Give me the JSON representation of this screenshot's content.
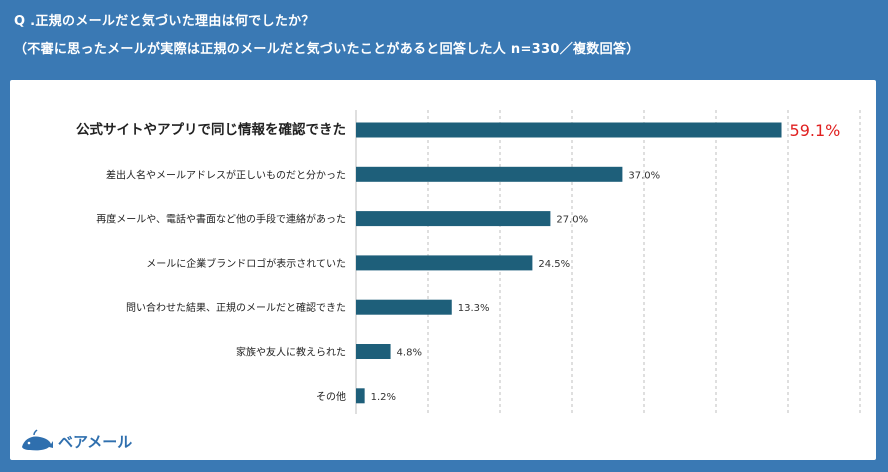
{
  "header": {
    "question": "Q .正規のメールだと気づいた理由は何でしたか？",
    "subtitle": "（不審に思ったメールが実際は正規のメールだと気づいたことがあると回答した人 n=330／複数回答）"
  },
  "logo": {
    "text": "ベアメール",
    "icon": "whale-icon"
  },
  "colors": {
    "background": "#3a79b4",
    "bar": "#1e5f7a",
    "highlight": "#e02020",
    "grid": "#bfbfbf"
  },
  "chart_data": {
    "type": "bar",
    "orientation": "horizontal",
    "categories": [
      "公式サイトやアプリで同じ情報を確認できた",
      "差出人名やメールアドレスが正しいものだと分かった",
      "再度メールや、電話や書面など他の手段で連絡があった",
      "メールに企業ブランドロゴが表示されていた",
      "問い合わせた結果、正規のメールだと確認できた",
      "家族や友人に教えられた",
      "その他"
    ],
    "values": [
      59.1,
      37.0,
      27.0,
      24.5,
      13.3,
      4.8,
      1.2
    ],
    "value_labels": [
      "59.1%",
      "37.0%",
      "27.0%",
      "24.5%",
      "13.3%",
      "4.8%",
      "1.2%"
    ],
    "highlight_index": 0,
    "xlim": [
      0,
      70
    ],
    "grid": true,
    "grid_style": "dashed vertical"
  }
}
